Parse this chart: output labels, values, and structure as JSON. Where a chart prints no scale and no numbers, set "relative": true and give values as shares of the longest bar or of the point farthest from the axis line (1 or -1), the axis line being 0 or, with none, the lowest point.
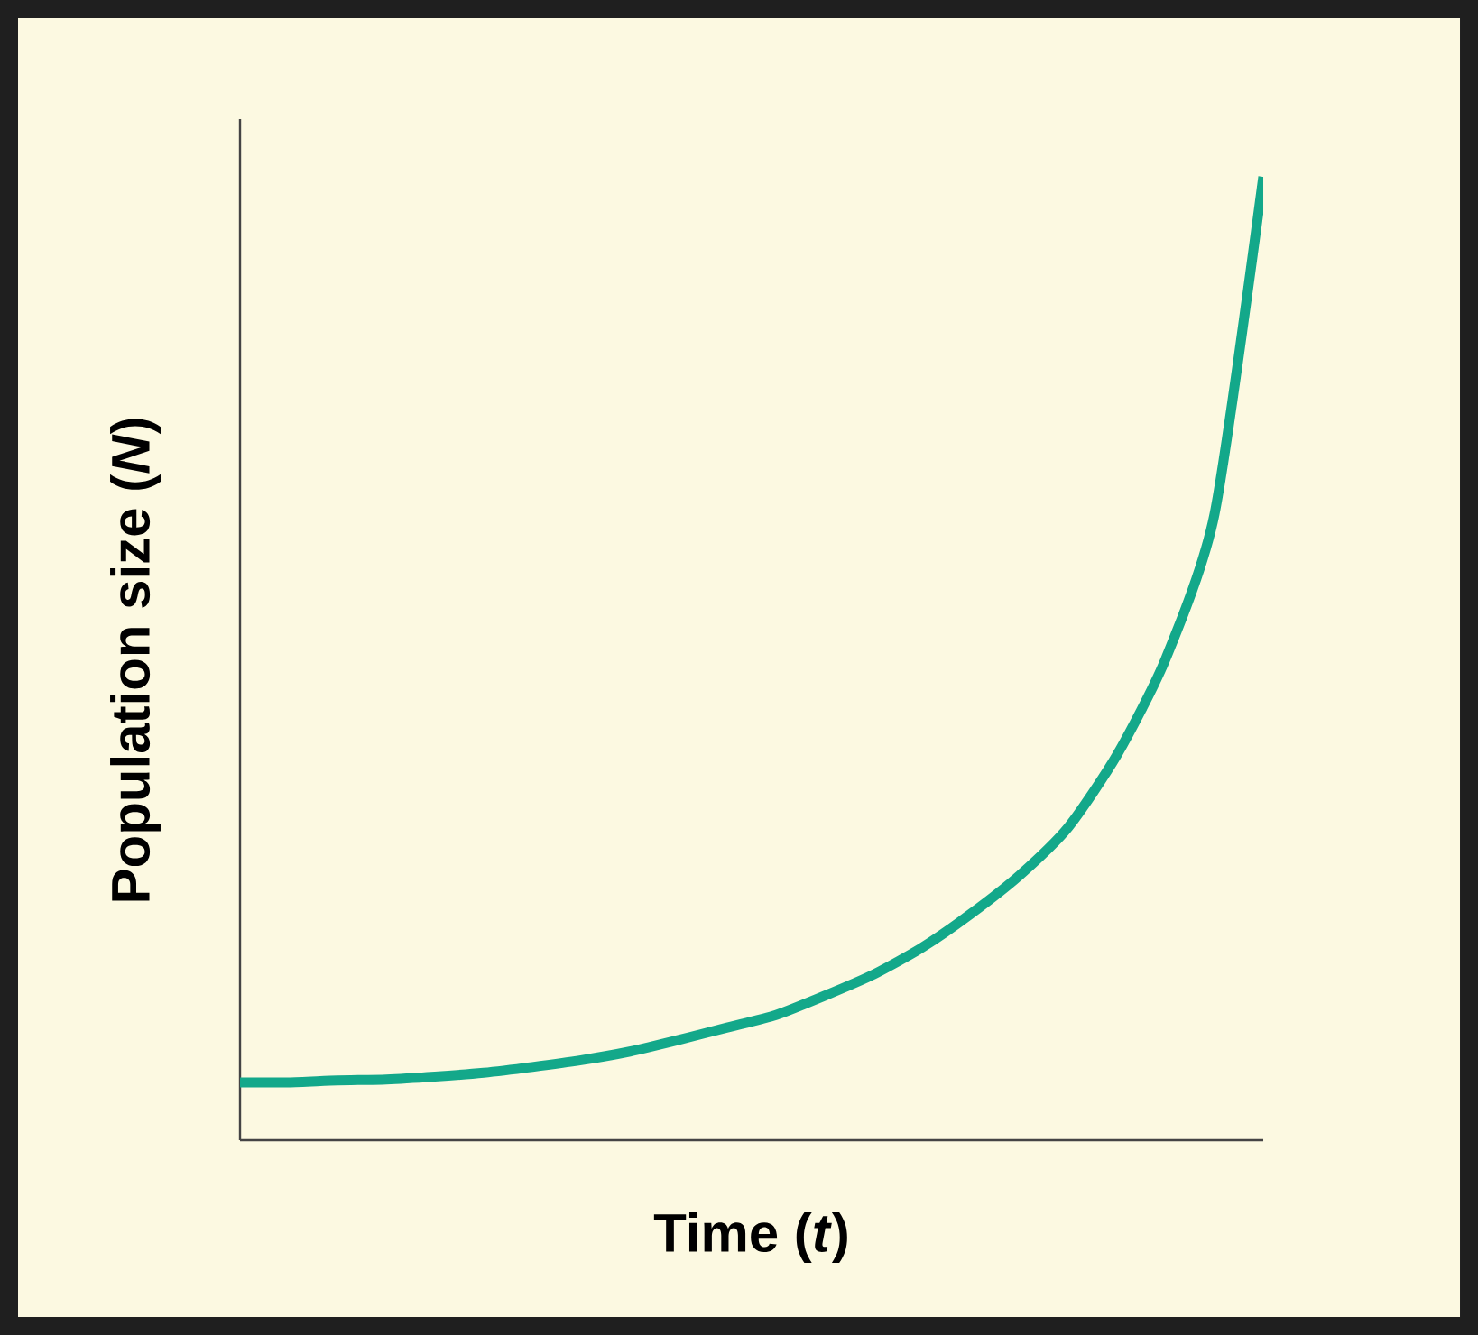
{
  "chart_data": {
    "type": "line",
    "relative": true,
    "xlabel": "Time (*t*)",
    "ylabel": "Population size (*N*)",
    "categories": [
      null,
      null,
      null,
      null,
      null,
      null,
      null,
      null,
      null,
      null,
      null,
      null,
      null,
      null,
      null,
      null,
      null,
      null,
      null,
      null,
      null,
      null
    ],
    "series": [
      {
        "color": "#13a88a",
        "values": [
          0.06,
          0.06,
          0.062,
          0.063,
          0.066,
          0.07,
          0.076,
          0.083,
          0.092,
          0.104,
          0.117,
          0.13,
          0.15,
          0.172,
          0.2,
          0.235,
          0.275,
          0.325,
          0.4,
          0.5,
          0.65,
          1.0
        ]
      }
    ]
  }
}
